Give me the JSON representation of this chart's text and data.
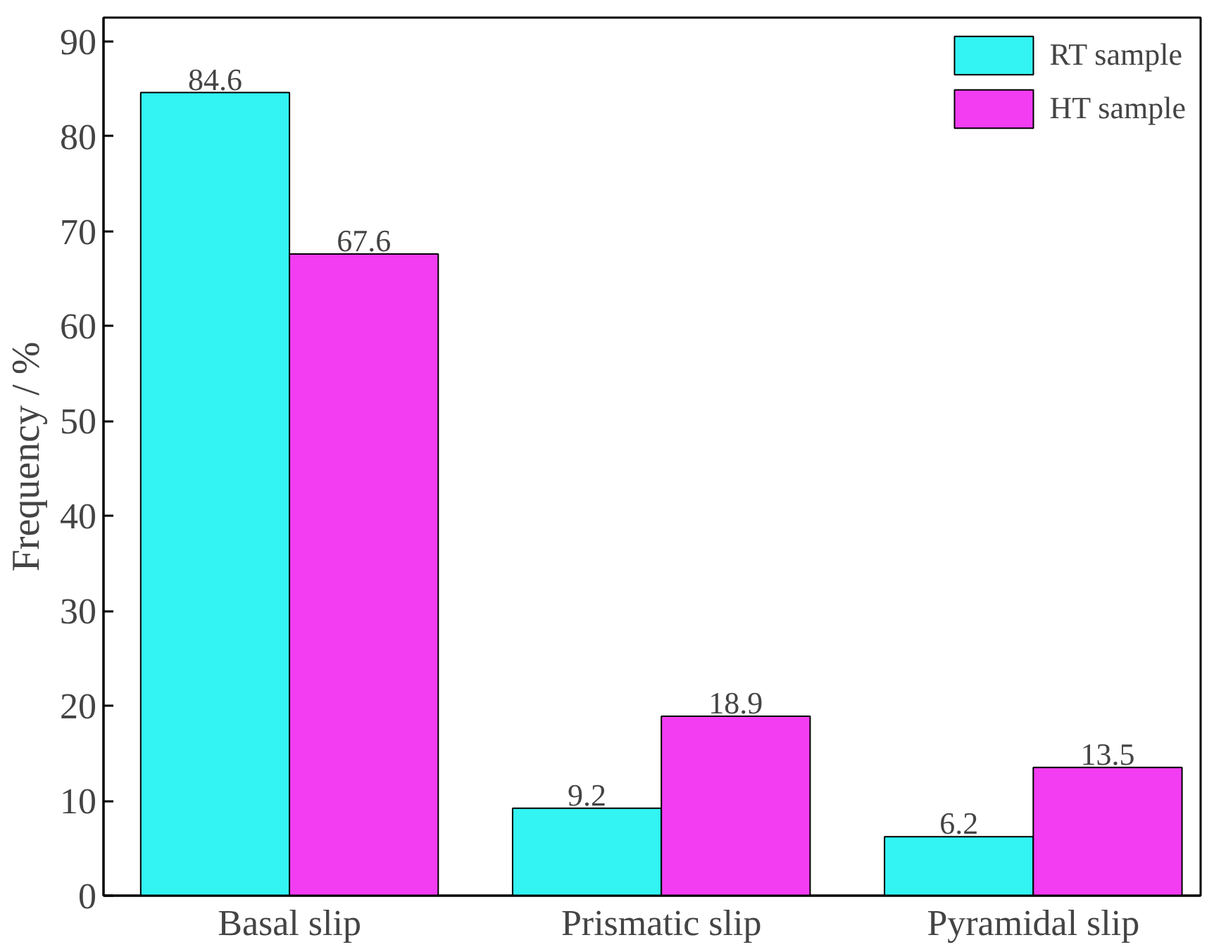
{
  "chart_data": {
    "type": "bar",
    "ylabel": "Frequency / %",
    "categories": [
      "Basal slip",
      "Prismatic slip",
      "Pyramidal slip"
    ],
    "series": [
      {
        "name": "RT sample",
        "color": "#33f3f3",
        "values": [
          84.6,
          9.2,
          6.2
        ]
      },
      {
        "name": "HT sample",
        "color": "#f23df2",
        "values": [
          67.6,
          18.9,
          13.5
        ]
      }
    ],
    "ylim": [
      0,
      92.5
    ],
    "yticks": [
      0,
      10,
      20,
      30,
      40,
      50,
      60,
      70,
      80,
      90
    ],
    "grid": false,
    "legend": "top right",
    "data_labels": true
  }
}
